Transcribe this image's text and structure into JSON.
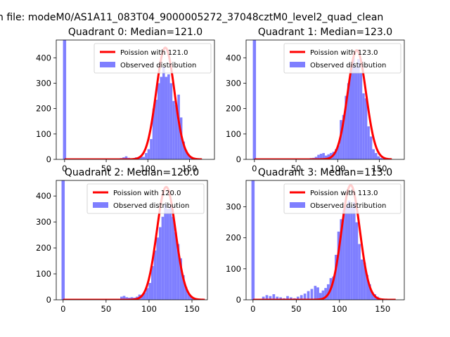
{
  "figure_title": "n file: modeM0/AS1A11_083T04_9000005272_37048cztM0_level2_quad_clean",
  "colors": {
    "poisson": "#ff0000",
    "observed": "#7f7fff",
    "axes": "#000000"
  },
  "chart_data": [
    {
      "type": "bar",
      "title": "Quadrant 0: Median=121.0",
      "legend": {
        "placement": "top-right",
        "entries": [
          "Poission with 121.0",
          "Observed distribution"
        ]
      },
      "xlim": [
        -10,
        180
      ],
      "ylim": [
        0,
        470
      ],
      "xticks": [
        0,
        50,
        100,
        150
      ],
      "yticks": [
        0,
        100,
        200,
        300,
        400
      ],
      "poisson_mean": 121,
      "poisson_peak": 440,
      "bars": [
        {
          "x": 0,
          "y": 470
        },
        {
          "x": 68,
          "y": 5
        },
        {
          "x": 71,
          "y": 8
        },
        {
          "x": 74,
          "y": 12
        },
        {
          "x": 77,
          "y": 6
        },
        {
          "x": 80,
          "y": 4
        },
        {
          "x": 83,
          "y": 3
        },
        {
          "x": 86,
          "y": 8
        },
        {
          "x": 89,
          "y": 5
        },
        {
          "x": 92,
          "y": 12
        },
        {
          "x": 95,
          "y": 10
        },
        {
          "x": 98,
          "y": 25
        },
        {
          "x": 101,
          "y": 40
        },
        {
          "x": 104,
          "y": 80
        },
        {
          "x": 107,
          "y": 200
        },
        {
          "x": 110,
          "y": 235
        },
        {
          "x": 113,
          "y": 300
        },
        {
          "x": 116,
          "y": 325
        },
        {
          "x": 119,
          "y": 365
        },
        {
          "x": 122,
          "y": 325
        },
        {
          "x": 125,
          "y": 335
        },
        {
          "x": 128,
          "y": 300
        },
        {
          "x": 131,
          "y": 230
        },
        {
          "x": 134,
          "y": 215
        },
        {
          "x": 137,
          "y": 255
        },
        {
          "x": 140,
          "y": 165
        },
        {
          "x": 143,
          "y": 70
        },
        {
          "x": 146,
          "y": 35
        },
        {
          "x": 149,
          "y": 20
        },
        {
          "x": 152,
          "y": 10
        },
        {
          "x": 155,
          "y": 5
        }
      ]
    },
    {
      "type": "bar",
      "title": "Quadrant 1: Median=123.0",
      "legend": {
        "placement": "top-right",
        "entries": [
          "Poission with 123.0",
          "Observed distribution"
        ]
      },
      "xlim": [
        -10,
        180
      ],
      "ylim": [
        0,
        470
      ],
      "xticks": [
        0,
        50,
        100,
        150
      ],
      "yticks": [
        0,
        100,
        200,
        300,
        400
      ],
      "poisson_mean": 123,
      "poisson_peak": 430,
      "bars": [
        {
          "x": 0,
          "y": 470
        },
        {
          "x": 68,
          "y": 5
        },
        {
          "x": 71,
          "y": 6
        },
        {
          "x": 74,
          "y": 10
        },
        {
          "x": 77,
          "y": 18
        },
        {
          "x": 80,
          "y": 22
        },
        {
          "x": 83,
          "y": 25
        },
        {
          "x": 86,
          "y": 15
        },
        {
          "x": 89,
          "y": 20
        },
        {
          "x": 92,
          "y": 25
        },
        {
          "x": 95,
          "y": 30
        },
        {
          "x": 98,
          "y": 40
        },
        {
          "x": 101,
          "y": 55
        },
        {
          "x": 104,
          "y": 155
        },
        {
          "x": 107,
          "y": 175
        },
        {
          "x": 110,
          "y": 250
        },
        {
          "x": 113,
          "y": 300
        },
        {
          "x": 116,
          "y": 360
        },
        {
          "x": 119,
          "y": 400
        },
        {
          "x": 122,
          "y": 365
        },
        {
          "x": 125,
          "y": 395
        },
        {
          "x": 128,
          "y": 340
        },
        {
          "x": 131,
          "y": 260
        },
        {
          "x": 134,
          "y": 240
        },
        {
          "x": 137,
          "y": 130
        },
        {
          "x": 140,
          "y": 90
        },
        {
          "x": 143,
          "y": 40
        },
        {
          "x": 146,
          "y": 25
        },
        {
          "x": 149,
          "y": 12
        },
        {
          "x": 152,
          "y": 6
        },
        {
          "x": 155,
          "y": 3
        }
      ]
    },
    {
      "type": "bar",
      "title": "Quadrant 2: Median=120.0",
      "legend": {
        "placement": "top-right",
        "entries": [
          "Poission with 120.0",
          "Observed distribution"
        ]
      },
      "xlim": [
        -8,
        168
      ],
      "ylim": [
        0,
        460
      ],
      "xticks": [
        0,
        50,
        100,
        150
      ],
      "yticks": [
        0,
        100,
        200,
        300,
        400
      ],
      "poisson_mean": 120,
      "poisson_peak": 435,
      "bars": [
        {
          "x": 0,
          "y": 460
        },
        {
          "x": 68,
          "y": 12
        },
        {
          "x": 71,
          "y": 15
        },
        {
          "x": 74,
          "y": 10
        },
        {
          "x": 77,
          "y": 8
        },
        {
          "x": 80,
          "y": 10
        },
        {
          "x": 83,
          "y": 8
        },
        {
          "x": 86,
          "y": 12
        },
        {
          "x": 89,
          "y": 20
        },
        {
          "x": 92,
          "y": 15
        },
        {
          "x": 95,
          "y": 28
        },
        {
          "x": 98,
          "y": 45
        },
        {
          "x": 101,
          "y": 65
        },
        {
          "x": 104,
          "y": 130
        },
        {
          "x": 107,
          "y": 190
        },
        {
          "x": 110,
          "y": 240
        },
        {
          "x": 113,
          "y": 280
        },
        {
          "x": 116,
          "y": 320
        },
        {
          "x": 119,
          "y": 370
        },
        {
          "x": 122,
          "y": 350
        },
        {
          "x": 125,
          "y": 360
        },
        {
          "x": 128,
          "y": 320
        },
        {
          "x": 131,
          "y": 260
        },
        {
          "x": 134,
          "y": 215
        },
        {
          "x": 137,
          "y": 160
        },
        {
          "x": 140,
          "y": 95
        },
        {
          "x": 143,
          "y": 50
        },
        {
          "x": 146,
          "y": 25
        },
        {
          "x": 149,
          "y": 12
        },
        {
          "x": 152,
          "y": 6
        }
      ]
    },
    {
      "type": "bar",
      "title": "Quadrant 3: Median=113.0",
      "legend": {
        "placement": "top-right",
        "entries": [
          "Poission with 113.0",
          "Observed distribution"
        ]
      },
      "xlim": [
        -8,
        175
      ],
      "ylim": [
        0,
        385
      ],
      "xticks": [
        0,
        50,
        100,
        150
      ],
      "yticks": [
        0,
        100,
        200,
        300
      ],
      "poisson_mean": 113,
      "poisson_peak": 370,
      "bars": [
        {
          "x": 0,
          "y": 385
        },
        {
          "x": 12,
          "y": 10
        },
        {
          "x": 16,
          "y": 15
        },
        {
          "x": 20,
          "y": 12
        },
        {
          "x": 24,
          "y": 18
        },
        {
          "x": 28,
          "y": 10
        },
        {
          "x": 32,
          "y": 8
        },
        {
          "x": 36,
          "y": 5
        },
        {
          "x": 40,
          "y": 12
        },
        {
          "x": 44,
          "y": 8
        },
        {
          "x": 48,
          "y": 5
        },
        {
          "x": 52,
          "y": 10
        },
        {
          "x": 56,
          "y": 15
        },
        {
          "x": 60,
          "y": 20
        },
        {
          "x": 64,
          "y": 28
        },
        {
          "x": 68,
          "y": 35
        },
        {
          "x": 72,
          "y": 45
        },
        {
          "x": 75,
          "y": 40
        },
        {
          "x": 78,
          "y": 22
        },
        {
          "x": 81,
          "y": 30
        },
        {
          "x": 84,
          "y": 38
        },
        {
          "x": 87,
          "y": 50
        },
        {
          "x": 90,
          "y": 70
        },
        {
          "x": 93,
          "y": 75
        },
        {
          "x": 96,
          "y": 145
        },
        {
          "x": 99,
          "y": 220
        },
        {
          "x": 102,
          "y": 260
        },
        {
          "x": 105,
          "y": 290
        },
        {
          "x": 108,
          "y": 300
        },
        {
          "x": 111,
          "y": 320
        },
        {
          "x": 114,
          "y": 300
        },
        {
          "x": 117,
          "y": 315
        },
        {
          "x": 120,
          "y": 250
        },
        {
          "x": 123,
          "y": 180
        },
        {
          "x": 126,
          "y": 130
        },
        {
          "x": 129,
          "y": 120
        },
        {
          "x": 132,
          "y": 80
        },
        {
          "x": 135,
          "y": 50
        },
        {
          "x": 138,
          "y": 25
        },
        {
          "x": 141,
          "y": 18
        },
        {
          "x": 144,
          "y": 10
        }
      ]
    }
  ]
}
